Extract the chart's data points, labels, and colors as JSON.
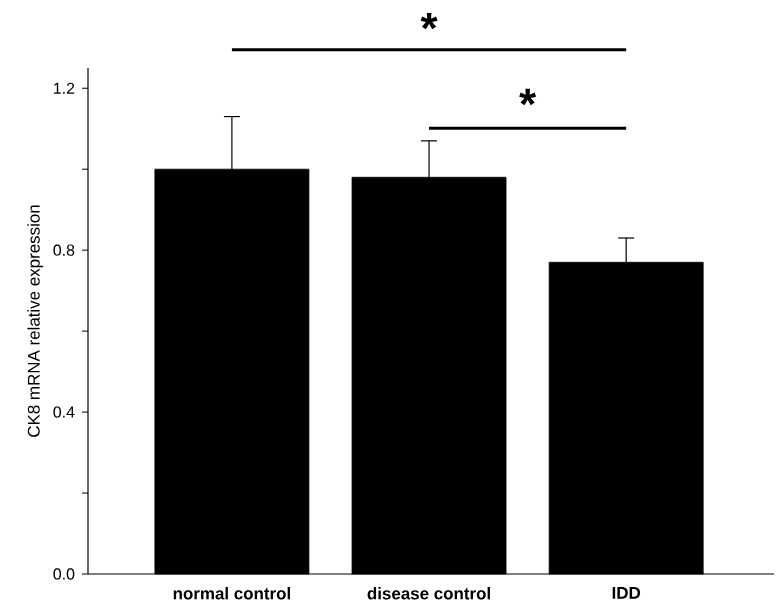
{
  "chart_data": {
    "type": "bar",
    "ylabel": "CK8 mRNA relative expression",
    "categories": [
      "normal control",
      "disease control",
      "IDD"
    ],
    "values": [
      1.0,
      0.98,
      0.77
    ],
    "errors": [
      0.13,
      0.09,
      0.06
    ],
    "color": "#000000",
    "ylim": [
      0,
      1.25
    ],
    "yticks": [
      {
        "value": 0,
        "label": "0.0"
      },
      {
        "value": 0.2,
        "label": null
      },
      0.4,
      {
        "value": 0.6,
        "label": null
      },
      0.8,
      {
        "value": 1.0,
        "label": null
      },
      1.2
    ],
    "annotations": [
      "*",
      "*"
    ]
  }
}
